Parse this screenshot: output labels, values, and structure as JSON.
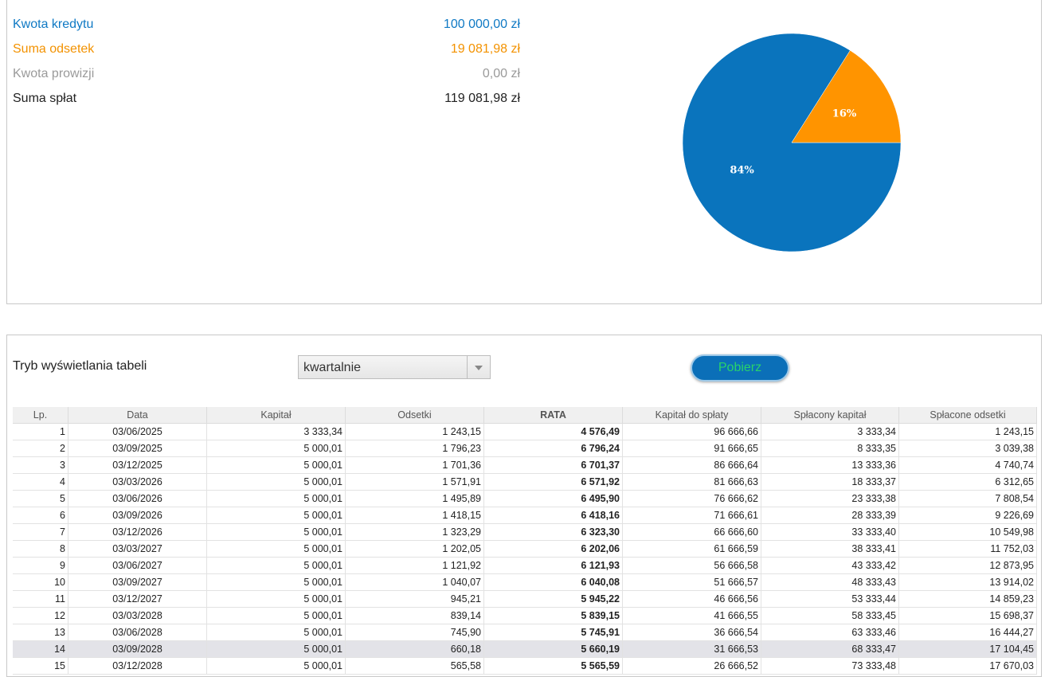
{
  "summary": {
    "rows": [
      {
        "label": "Kwota kredytu",
        "value": "100 000,00 zł",
        "color": "#0f79c4",
        "bold": false
      },
      {
        "label": "Suma odsetek",
        "value": "19 081,98 zł",
        "color": "#f39200",
        "bold": false
      },
      {
        "label": "Kwota prowizji",
        "value": "0,00 zł",
        "color": "#9a9a9a",
        "bold": false
      },
      {
        "label": "Suma spłat",
        "value": "119 081,98 zł",
        "color": "#222222",
        "bold": true
      }
    ]
  },
  "chart_data": {
    "type": "pie",
    "slices": [
      {
        "label": "84%",
        "value": 84,
        "color": "#0a74bd"
      },
      {
        "label": "16%",
        "value": 16,
        "color": "#ff9400"
      }
    ]
  },
  "controls": {
    "mode_label": "Tryb wyświetlania tabeli",
    "mode_value": "kwartalnie",
    "download_label": "Pobierz"
  },
  "table": {
    "headers": [
      "Lp.",
      "Data",
      "Kapitał",
      "Odsetki",
      "RATA",
      "Kapitał do spłaty",
      "Spłacony kapitał",
      "Spłacone odsetki"
    ],
    "highlight_row": 14,
    "rows": [
      [
        "1",
        "03/06/2025",
        "3 333,34",
        "1 243,15",
        "4 576,49",
        "96 666,66",
        "3 333,34",
        "1 243,15"
      ],
      [
        "2",
        "03/09/2025",
        "5 000,01",
        "1 796,23",
        "6 796,24",
        "91 666,65",
        "8 333,35",
        "3 039,38"
      ],
      [
        "3",
        "03/12/2025",
        "5 000,01",
        "1 701,36",
        "6 701,37",
        "86 666,64",
        "13 333,36",
        "4 740,74"
      ],
      [
        "4",
        "03/03/2026",
        "5 000,01",
        "1 571,91",
        "6 571,92",
        "81 666,63",
        "18 333,37",
        "6 312,65"
      ],
      [
        "5",
        "03/06/2026",
        "5 000,01",
        "1 495,89",
        "6 495,90",
        "76 666,62",
        "23 333,38",
        "7 808,54"
      ],
      [
        "6",
        "03/09/2026",
        "5 000,01",
        "1 418,15",
        "6 418,16",
        "71 666,61",
        "28 333,39",
        "9 226,69"
      ],
      [
        "7",
        "03/12/2026",
        "5 000,01",
        "1 323,29",
        "6 323,30",
        "66 666,60",
        "33 333,40",
        "10 549,98"
      ],
      [
        "8",
        "03/03/2027",
        "5 000,01",
        "1 202,05",
        "6 202,06",
        "61 666,59",
        "38 333,41",
        "11 752,03"
      ],
      [
        "9",
        "03/06/2027",
        "5 000,01",
        "1 121,92",
        "6 121,93",
        "56 666,58",
        "43 333,42",
        "12 873,95"
      ],
      [
        "10",
        "03/09/2027",
        "5 000,01",
        "1 040,07",
        "6 040,08",
        "51 666,57",
        "48 333,43",
        "13 914,02"
      ],
      [
        "11",
        "03/12/2027",
        "5 000,01",
        "945,21",
        "5 945,22",
        "46 666,56",
        "53 333,44",
        "14 859,23"
      ],
      [
        "12",
        "03/03/2028",
        "5 000,01",
        "839,14",
        "5 839,15",
        "41 666,55",
        "58 333,45",
        "15 698,37"
      ],
      [
        "13",
        "03/06/2028",
        "5 000,01",
        "745,90",
        "5 745,91",
        "36 666,54",
        "63 333,46",
        "16 444,27"
      ],
      [
        "14",
        "03/09/2028",
        "5 000,01",
        "660,18",
        "5 660,19",
        "31 666,53",
        "68 333,47",
        "17 104,45"
      ],
      [
        "15",
        "03/12/2028",
        "5 000,01",
        "565,58",
        "5 565,59",
        "26 666,52",
        "73 333,48",
        "17 670,03"
      ]
    ]
  }
}
